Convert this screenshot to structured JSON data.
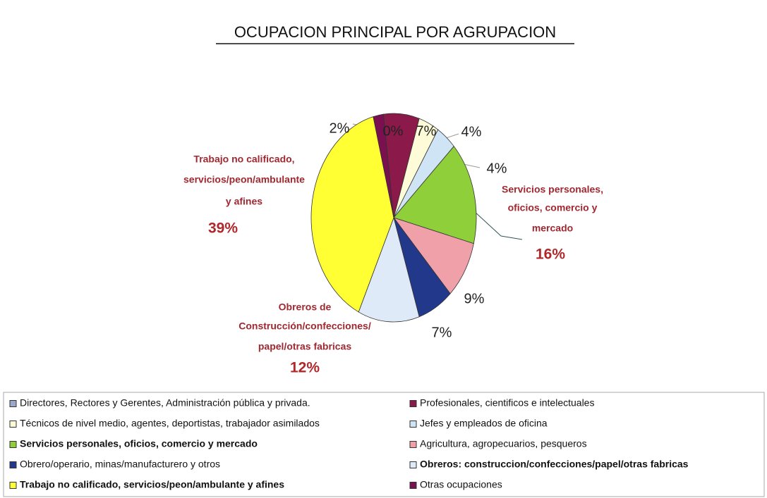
{
  "chart_data": {
    "type": "pie",
    "title": "OCUPACION PRINCIPAL POR AGRUPACION",
    "categories": [
      "Directores, Rectores y Gerentes, Administración pública y privada.",
      "Profesionales, cientificos e intelectuales",
      "Técnicos de nivel medio, agentes, deportistas, trabajador asimilados",
      "Jefes y empleados de oficina",
      "Servicios personales, oficios, comercio y mercado",
      "Agricultura, agropecuarios, pesqueros",
      "Obrero/operario, minas/manufacturero y otros",
      "Obreros: construccion/confecciones/papel/otras fabricas",
      "Trabajo no calificado, servicios/peon/ambulante y afines",
      "Otras ocupaciones"
    ],
    "values": [
      0,
      7,
      4,
      4,
      16,
      9,
      7,
      12,
      39,
      2
    ],
    "value_labels": [
      "0%",
      "7%",
      "4%",
      "4%",
      "16%",
      "9%",
      "7%",
      "12%",
      "39%",
      "2%"
    ],
    "colors": [
      "#9aa8cf",
      "#8b1a4a",
      "#fdfbd8",
      "#cfe4f5",
      "#8fcf3a",
      "#f0a0a8",
      "#22388a",
      "#dfeaf8",
      "#ffff33",
      "#7a1050"
    ],
    "annotations": [
      {
        "lines": [
          "Servicios personales,",
          "oficios, comercio y",
          "mercado"
        ]
      },
      {
        "lines": [
          "Obreros de",
          "Construcción/confecciones/",
          "papel/otras fabricas"
        ]
      },
      {
        "lines": [
          "Trabajo no calificado,",
          "servicios/peon/ambulante",
          "y afines"
        ]
      }
    ]
  }
}
